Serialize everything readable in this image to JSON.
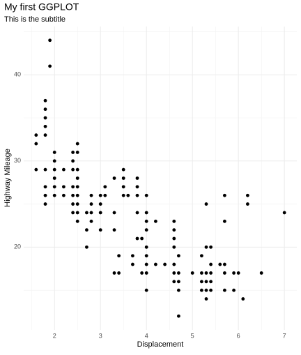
{
  "chart_data": {
    "type": "scatter",
    "title": "My first GGPLOT",
    "subtitle": "This is the subtitle",
    "x_label": "Displacement",
    "y_label": "Highway Mileage",
    "x": [
      1.6,
      1.6,
      1.6,
      1.8,
      1.8,
      1.8,
      1.8,
      1.8,
      1.8,
      1.8,
      1.8,
      1.8,
      1.9,
      1.9,
      2.0,
      2.0,
      2.0,
      2.0,
      2.0,
      2.0,
      2.2,
      2.2,
      2.2,
      2.4,
      2.4,
      2.4,
      2.4,
      2.4,
      2.4,
      2.4,
      2.5,
      2.5,
      2.5,
      2.5,
      2.5,
      2.5,
      2.5,
      2.5,
      2.5,
      2.7,
      2.7,
      2.7,
      2.8,
      2.8,
      2.8,
      2.8,
      3.0,
      3.0,
      3.0,
      3.0,
      3.1,
      3.1,
      3.3,
      3.3,
      3.3,
      3.3,
      3.4,
      3.4,
      3.5,
      3.5,
      3.5,
      3.5,
      3.6,
      3.7,
      3.7,
      3.8,
      3.8,
      3.8,
      3.8,
      3.8,
      3.9,
      3.9,
      4.0,
      4.0,
      4.0,
      4.0,
      4.0,
      4.0,
      4.0,
      4.0,
      4.0,
      4.2,
      4.2,
      4.4,
      4.6,
      4.6,
      4.6,
      4.6,
      4.6,
      4.6,
      4.6,
      4.7,
      4.7,
      4.7,
      4.7,
      4.7,
      5.0,
      5.2,
      5.2,
      5.2,
      5.2,
      5.3,
      5.3,
      5.3,
      5.3,
      5.3,
      5.3,
      5.4,
      5.4,
      5.4,
      5.4,
      5.4,
      5.6,
      5.7,
      5.7,
      5.7,
      5.7,
      5.7,
      5.9,
      5.9,
      6.0,
      6.1,
      6.2,
      6.2,
      6.5,
      7.0
    ],
    "values": [
      33,
      32,
      29,
      37,
      36,
      35,
      34,
      33,
      29,
      27,
      26,
      25,
      44,
      41,
      31,
      30,
      29,
      28,
      27,
      26,
      29,
      27,
      26,
      31,
      30,
      29,
      27,
      26,
      25,
      24,
      32,
      31,
      29,
      28,
      27,
      26,
      25,
      24,
      23,
      24,
      22,
      20,
      26,
      25,
      24,
      23,
      26,
      25,
      24,
      22,
      27,
      26,
      28,
      24,
      22,
      17,
      19,
      17,
      29,
      28,
      27,
      26,
      26,
      19,
      18,
      28,
      27,
      26,
      24,
      21,
      21,
      17,
      26,
      24,
      23,
      22,
      20,
      19,
      18,
      17,
      15,
      23,
      18,
      18,
      23,
      22,
      21,
      20,
      18,
      17,
      16,
      19,
      17,
      16,
      15,
      12,
      17,
      19,
      17,
      16,
      15,
      25,
      20,
      17,
      16,
      15,
      14,
      20,
      18,
      17,
      16,
      15,
      18,
      26,
      23,
      18,
      17,
      15,
      15,
      17,
      17,
      14,
      26,
      25,
      17,
      24
    ],
    "color": "#000000",
    "xlim": [
      1.33,
      7.27
    ],
    "xticks": [
      2,
      3,
      4,
      5,
      6,
      7
    ],
    "ylim": [
      10.4,
      45.6
    ],
    "yticks": [
      20,
      30,
      40
    ],
    "grid": true,
    "minor_grid": true
  }
}
